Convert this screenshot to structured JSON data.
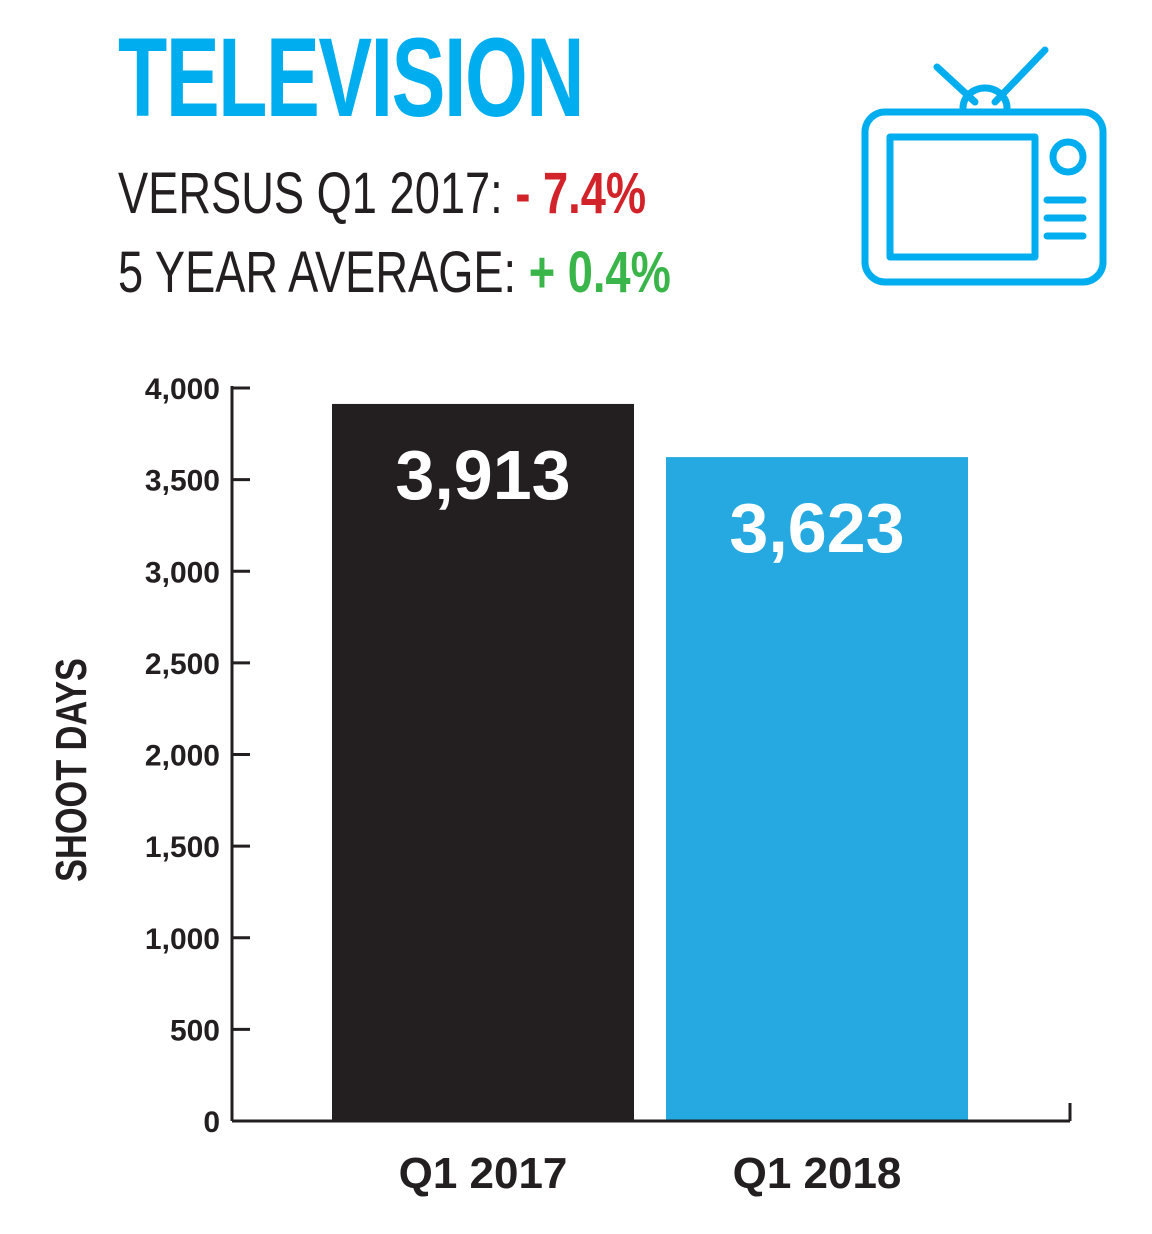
{
  "header": {
    "title": "TELEVISION",
    "versus_label": "VERSUS Q1 2017:",
    "versus_value": "- 7.4%",
    "avg_label": "5 YEAR AVERAGE:",
    "avg_value": "+ 0.4%"
  },
  "icons": {
    "tv": "television-icon"
  },
  "colors": {
    "title": "#00aeef",
    "negative": "#d2232a",
    "positive": "#3ab54a",
    "bar_2017": "#231f20",
    "bar_2018": "#26a9e0"
  },
  "chart_data": {
    "type": "bar",
    "categories": [
      "Q1 2017",
      "Q1 2018"
    ],
    "values": [
      3913,
      3623
    ],
    "value_labels": [
      "3,913",
      "3,623"
    ],
    "bar_colors": [
      "#231f20",
      "#26a9e0"
    ],
    "ylabel": "SHOOT DAYS",
    "xlabel": "",
    "ylim": [
      0,
      4000
    ],
    "yticks": [
      0,
      500,
      1000,
      1500,
      2000,
      2500,
      3000,
      3500,
      4000
    ],
    "ytick_labels": [
      "0",
      "500",
      "1,000",
      "1,500",
      "2,000",
      "2,500",
      "3,000",
      "3,500",
      "4,000"
    ],
    "grid": false,
    "legend": "none"
  }
}
